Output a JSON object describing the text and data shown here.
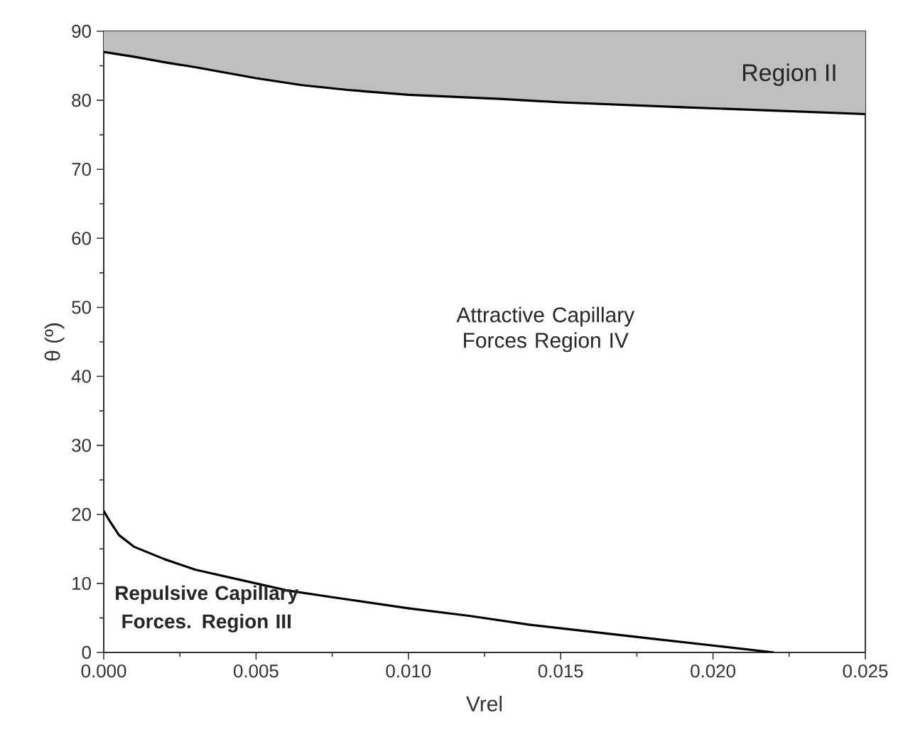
{
  "chart_data": {
    "type": "line",
    "xlabel": "Vrel",
    "ylabel": "θ (º)",
    "xlim": [
      0,
      0.025
    ],
    "ylim": [
      0,
      90
    ],
    "xticks": [
      {
        "value": 0,
        "label": "0.000"
      },
      {
        "value": 0.005,
        "label": "0.005"
      },
      {
        "value": 0.01,
        "label": "0.010"
      },
      {
        "value": 0.015,
        "label": "0.015"
      },
      {
        "value": 0.02,
        "label": "0.020"
      },
      {
        "value": 0.025,
        "label": "0.025"
      }
    ],
    "yticks": [
      0,
      10,
      20,
      30,
      40,
      50,
      60,
      70,
      80,
      90
    ],
    "grid": false,
    "marker": "none",
    "line_style": "solid",
    "series": [
      {
        "color": "#000000",
        "x": [
          0,
          0.001,
          0.002,
          0.003,
          0.004,
          0.005,
          0.0065,
          0.008,
          0.01,
          0.013,
          0.015,
          0.019,
          0.022,
          0.025
        ],
        "values": [
          87,
          86.3,
          85.5,
          84.8,
          84,
          83.2,
          82.2,
          81.5,
          80.8,
          80.2,
          79.7,
          79,
          78.5,
          78
        ],
        "lower": [
          87,
          86.3,
          85.5,
          84.8,
          84,
          83.2,
          82.2,
          81.5,
          80.8,
          80.2,
          79.7,
          79,
          78.5,
          78
        ],
        "upper": [
          90,
          90,
          90,
          90,
          90,
          90,
          90,
          90,
          90,
          90,
          90,
          90,
          90,
          90
        ]
      },
      {
        "color": "#000000",
        "x": [
          0,
          0.0002,
          0.0005,
          0.001,
          0.002,
          0.003,
          0.004,
          0.005,
          0.006,
          0.0075,
          0.01,
          0.012,
          0.014,
          0.016,
          0.018,
          0.02,
          0.022
        ],
        "values": [
          20.5,
          19,
          17,
          15.3,
          13.5,
          12,
          11,
          10,
          9,
          8,
          6.4,
          5.3,
          4,
          3,
          2,
          1,
          0
        ]
      }
    ],
    "annotations": [
      "Region II",
      "Attractive Capillary Forces Region IV",
      "Repulsive Capillary Forces. Region III"
    ]
  }
}
